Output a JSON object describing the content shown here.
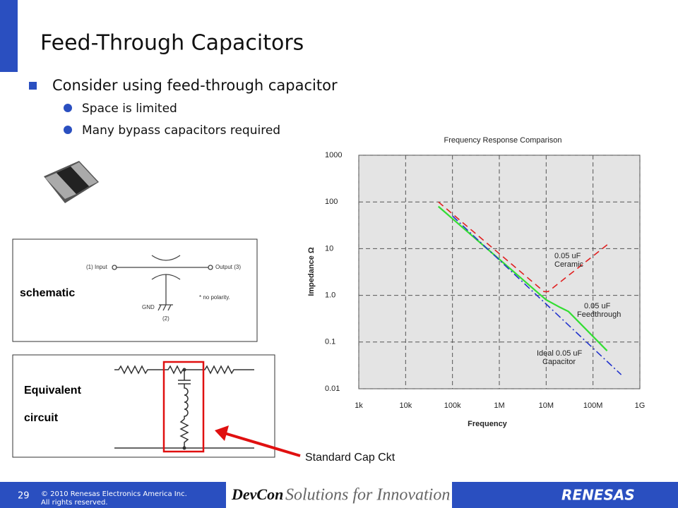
{
  "slide": {
    "title": "Feed-Through Capacitors",
    "bullet": "Consider using feed-through capacitor",
    "sub_bullets": [
      "Space is limited",
      "Many bypass capacitors required"
    ],
    "schematic_label": "schematic",
    "schematic_texts": [
      "(1)  Input",
      "Output  (3)",
      "GND",
      "(2)",
      "* no polarity."
    ],
    "equivalent_label": [
      "Equivalent",
      "circuit"
    ],
    "callout": "Standard Cap Ckt",
    "footer": {
      "page": "29",
      "copyright": [
        "© 2010 Renesas Electronics America Inc.",
        "All rights reserved."
      ],
      "devcon": "DevCon",
      "tagline": "Solutions for Innovation",
      "brand": "RENESAS"
    }
  },
  "chart_data": {
    "type": "line",
    "title": "Frequency Response Comparison",
    "x_label": "Frequency",
    "y_label": "Impedance   Ω",
    "x_log": true,
    "y_log": true,
    "grid": true,
    "xlim": [
      1000,
      1000000000
    ],
    "xticks": [
      {
        "value": 1000,
        "label": "1k"
      },
      {
        "value": 10000,
        "label": "10k"
      },
      {
        "value": 100000,
        "label": "100k"
      },
      {
        "value": 1000000,
        "label": "1M"
      },
      {
        "value": 10000000,
        "label": "10M"
      },
      {
        "value": 100000000,
        "label": "100M"
      },
      {
        "value": 1000000000,
        "label": "1G"
      }
    ],
    "ylim": [
      0.01,
      1000
    ],
    "yticks": [
      1000,
      100,
      10,
      {
        "value": 1,
        "label": "1.0"
      },
      0.1,
      0.01
    ],
    "annotations": [
      [
        "0.05 uF",
        "Ceramic"
      ],
      [
        "0.05 uF",
        "Feedthrough"
      ],
      [
        "Ideal 0.05 uF",
        "Capacitor"
      ]
    ],
    "series": [
      {
        "name": "0.05 uF Ceramic",
        "color": "#e02020",
        "x": [
          50000,
          9000000,
          11000000,
          220000000
        ],
        "values": [
          100,
          1.2,
          1.2,
          13
        ]
      },
      {
        "name": "0.05 uF Feedthrough",
        "color": "#33dd33",
        "x": [
          50000,
          10000000,
          20000000,
          30000000,
          200000000
        ],
        "values": [
          80,
          0.8,
          0.55,
          0.45,
          0.065
        ]
      },
      {
        "name": "Ideal 0.05 uF Capacitor",
        "color": "#2233cc",
        "x": [
          100000,
          400000000
        ],
        "values": [
          50,
          0.02
        ]
      }
    ]
  }
}
